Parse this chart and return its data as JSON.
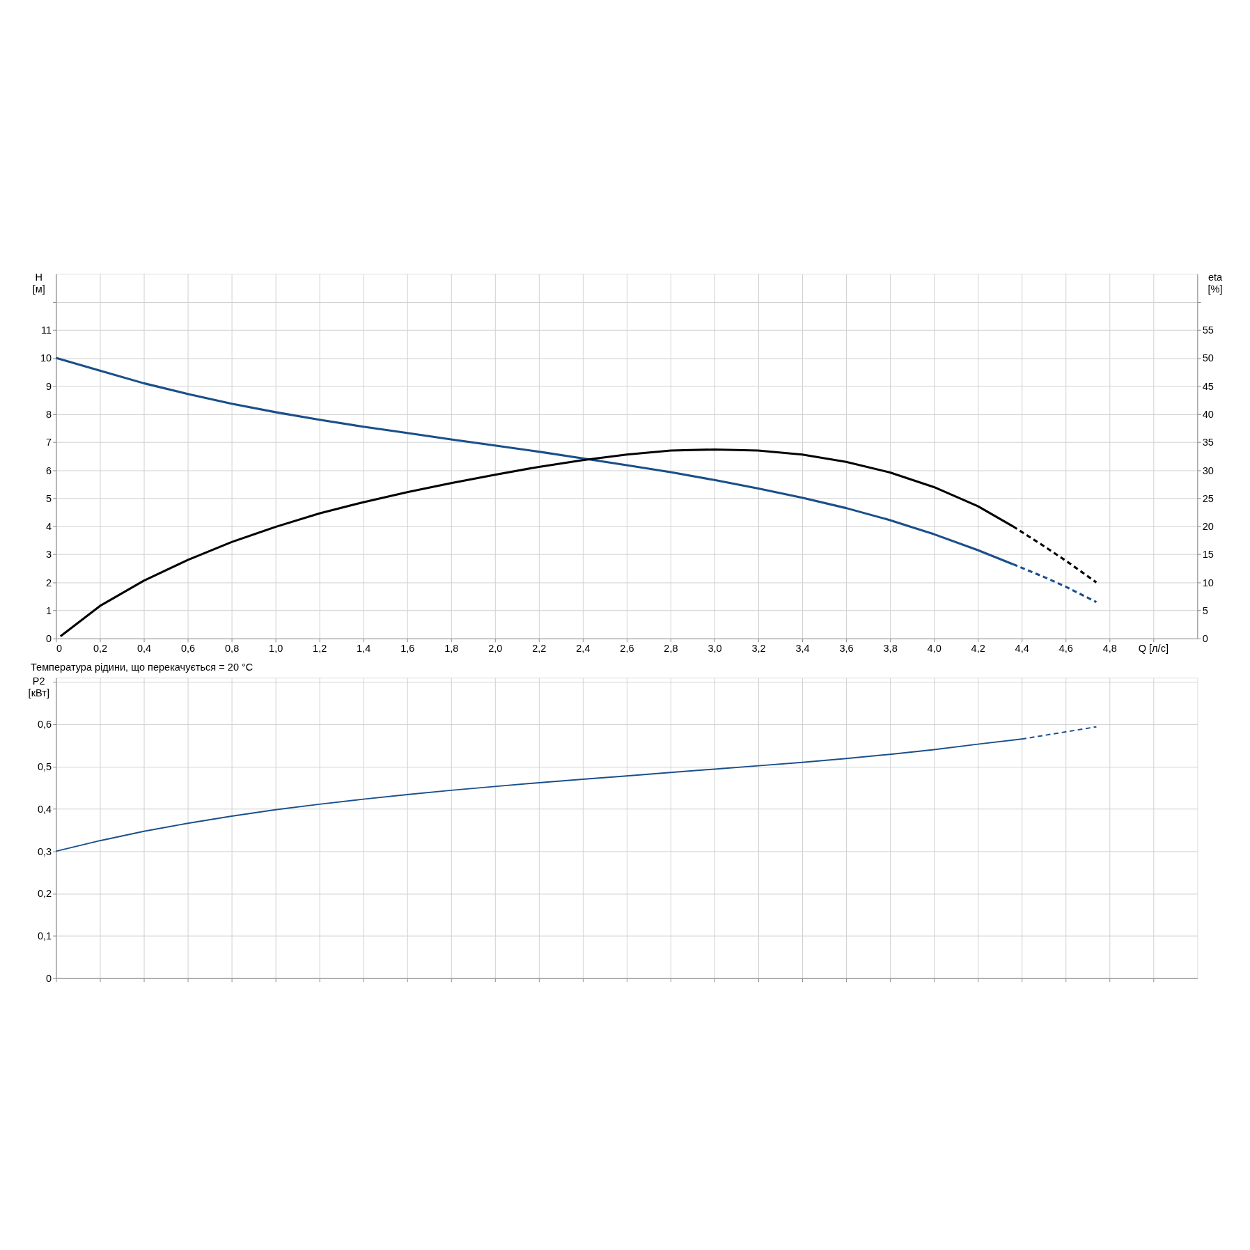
{
  "chart_data": [
    {
      "type": "line",
      "xlabel": "Q [л/с]",
      "ylabel": "H [м]",
      "y2label": "eta [%]",
      "grid": true,
      "legend": false,
      "xlim": [
        0,
        5.2
      ],
      "ylim": [
        0,
        13
      ],
      "y2lim": [
        0,
        65
      ],
      "xticks": [
        "0",
        {
          "value": 0.2,
          "label": "0,2"
        },
        {
          "value": 0.4,
          "label": "0,4"
        },
        {
          "value": 0.6,
          "label": "0,6"
        },
        {
          "value": 0.8,
          "label": "0,8"
        },
        {
          "value": 1.0,
          "label": "1,0"
        },
        {
          "value": 1.2,
          "label": "1,2"
        },
        {
          "value": 1.4,
          "label": "1,4"
        },
        {
          "value": 1.6,
          "label": "1,6"
        },
        {
          "value": 1.8,
          "label": "1,8"
        },
        {
          "value": 2.0,
          "label": "2,0"
        },
        {
          "value": 2.2,
          "label": "2,2"
        },
        {
          "value": 2.4,
          "label": "2,4"
        },
        {
          "value": 2.6,
          "label": "2,6"
        },
        {
          "value": 2.8,
          "label": "2,8"
        },
        {
          "value": 3.0,
          "label": "3,0"
        },
        {
          "value": 3.2,
          "label": "3,2"
        },
        {
          "value": 3.4,
          "label": "3,4"
        },
        {
          "value": 3.6,
          "label": "3,6"
        },
        {
          "value": 3.8,
          "label": "3,8"
        },
        {
          "value": 4.0,
          "label": "4,0"
        },
        {
          "value": 4.2,
          "label": "4,2"
        },
        {
          "value": 4.4,
          "label": "4,4"
        },
        {
          "value": 4.6,
          "label": "4,6"
        },
        {
          "value": 4.8,
          "label": "4,8"
        },
        {
          "value": 5.0,
          "label": null
        }
      ],
      "yticks": [
        0,
        1,
        2,
        3,
        4,
        5,
        6,
        7,
        8,
        9,
        10,
        11,
        {
          "value": 12,
          "label": null
        }
      ],
      "y2ticks": [
        0,
        5,
        10,
        15,
        20,
        25,
        30,
        35,
        40,
        45,
        50,
        55,
        {
          "value": 60,
          "label": null
        }
      ],
      "series": [
        {
          "color": "#1a4f8a",
          "line_style": "solid",
          "x": [
            0,
            0.2,
            0.4,
            0.6,
            0.8,
            1.0,
            1.2,
            1.4,
            1.6,
            1.8,
            2.0,
            2.2,
            2.4,
            2.6,
            2.8,
            3.0,
            3.2,
            3.4,
            3.6,
            3.8,
            4.0,
            4.2,
            4.36
          ],
          "values": [
            10,
            9.55,
            9.1,
            8.72,
            8.37,
            8.07,
            7.8,
            7.55,
            7.33,
            7.1,
            6.88,
            6.66,
            6.42,
            6.18,
            5.93,
            5.65,
            5.35,
            5.02,
            4.65,
            4.22,
            3.72,
            3.15,
            2.65
          ]
        },
        {
          "color": "#1a4f8a",
          "line_style": "dashed",
          "x": [
            4.36,
            4.5,
            4.6,
            4.74
          ],
          "values": [
            2.65,
            2.2,
            1.85,
            1.3
          ]
        },
        {
          "color": "#000000",
          "line_style": "solid",
          "axis": "y2",
          "x": [
            0.02,
            0.2,
            0.4,
            0.6,
            0.8,
            1.0,
            1.2,
            1.4,
            1.6,
            1.8,
            2.0,
            2.2,
            2.4,
            2.6,
            2.8,
            3.0,
            3.2,
            3.4,
            3.6,
            3.8,
            4.0,
            4.2,
            4.36
          ],
          "values": [
            0.4,
            5.8,
            10.3,
            14.0,
            17.2,
            19.9,
            22.3,
            24.3,
            26.1,
            27.7,
            29.2,
            30.6,
            31.8,
            32.8,
            33.5,
            33.7,
            33.5,
            32.8,
            31.5,
            29.6,
            27.0,
            23.6,
            20.0
          ]
        },
        {
          "color": "#000000",
          "line_style": "dashed",
          "axis": "y2",
          "x": [
            4.36,
            4.5,
            4.6,
            4.74
          ],
          "values": [
            20.0,
            16.5,
            13.9,
            10.0
          ]
        }
      ]
    },
    {
      "type": "line",
      "title": "Температура рідини, що перекачується = 20 °C",
      "ylabel": "P2 [кВт]",
      "grid": true,
      "legend": false,
      "tick_labels": "y",
      "xlim": [
        0,
        5.2
      ],
      "ylim": [
        0,
        0.71
      ],
      "xticks": [
        0,
        0.2,
        0.4,
        0.6,
        0.8,
        1.0,
        1.2,
        1.4,
        1.6,
        1.8,
        2.0,
        2.2,
        2.4,
        2.6,
        2.8,
        3.0,
        3.2,
        3.4,
        3.6,
        3.8,
        4.0,
        4.2,
        4.4,
        4.6,
        4.8,
        5.0
      ],
      "yticks": [
        "0",
        {
          "value": 0.1,
          "label": "0,1"
        },
        {
          "value": 0.2,
          "label": "0,2"
        },
        {
          "value": 0.3,
          "label": "0,3"
        },
        {
          "value": 0.4,
          "label": "0,4"
        },
        {
          "value": 0.5,
          "label": "0,5"
        },
        {
          "value": 0.6,
          "label": "0,6"
        },
        {
          "value": 0.7,
          "label": null
        }
      ],
      "series": [
        {
          "color": "#1a4f8a",
          "line_style": "solid",
          "x": [
            0,
            0.2,
            0.4,
            0.6,
            0.8,
            1.0,
            1.2,
            1.4,
            1.6,
            1.8,
            2.0,
            2.2,
            2.4,
            2.6,
            2.8,
            3.0,
            3.2,
            3.4,
            3.6,
            3.8,
            4.0,
            4.2,
            4.4
          ],
          "values": [
            0.3,
            0.325,
            0.347,
            0.366,
            0.383,
            0.398,
            0.411,
            0.423,
            0.434,
            0.444,
            0.453,
            0.462,
            0.47,
            0.478,
            0.486,
            0.494,
            0.502,
            0.51,
            0.519,
            0.529,
            0.54,
            0.553,
            0.565
          ]
        },
        {
          "color": "#1a4f8a",
          "line_style": "dashed",
          "x": [
            4.4,
            4.6,
            4.74
          ],
          "values": [
            0.565,
            0.582,
            0.594
          ]
        }
      ]
    }
  ]
}
